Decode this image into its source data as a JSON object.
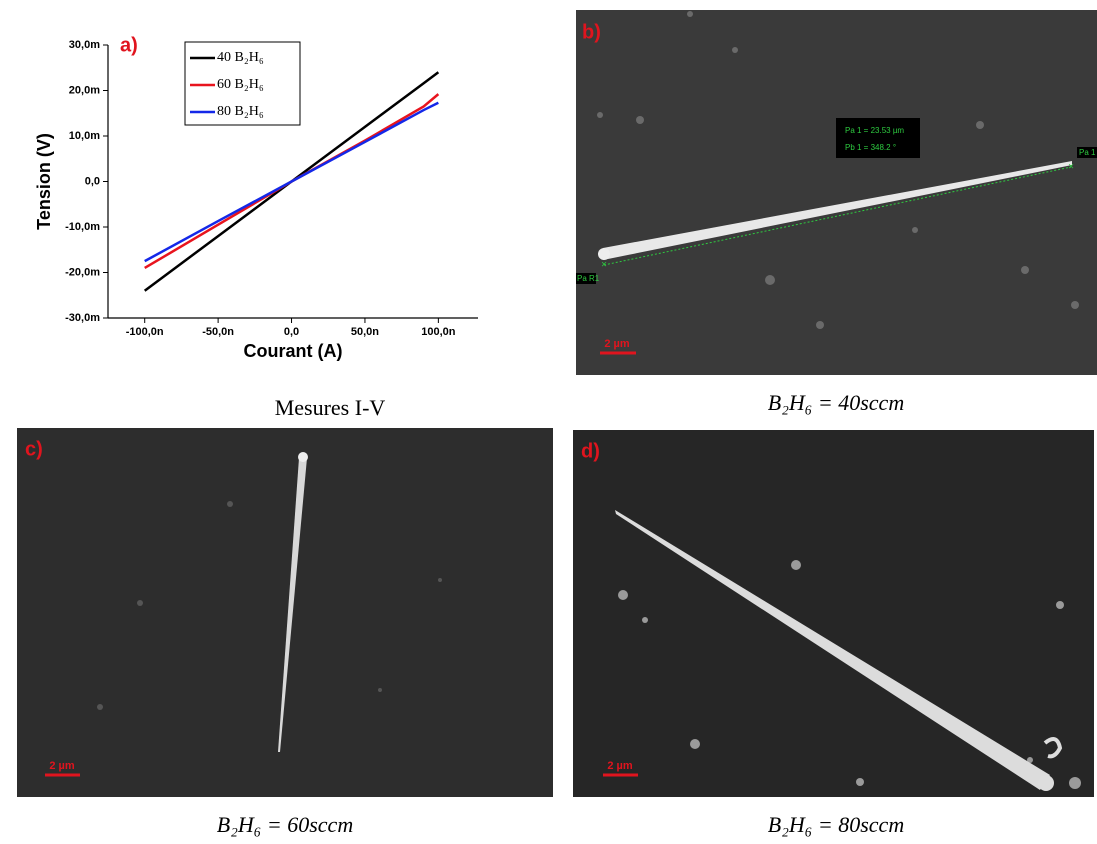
{
  "chart_data": {
    "type": "line",
    "x_label": "Courant (A)",
    "y_label": "Tension (V)",
    "x": [
      -1e-07,
      -5e-08,
      0,
      5e-08,
      9e-08,
      1e-07
    ],
    "series": [
      {
        "name": "40 B₂H₆",
        "color": "#000000",
        "values": [
          -0.024,
          -0.012,
          0,
          0.012,
          0.0216,
          0.024
        ]
      },
      {
        "name": "60 B₂H₆",
        "color": "#e8141e",
        "values": [
          -0.019,
          -0.0095,
          0,
          0.009,
          0.0165,
          0.0192
        ]
      },
      {
        "name": "80 B₂H₆",
        "color": "#1428e8",
        "values": [
          -0.0175,
          -0.0087,
          0,
          0.0087,
          0.0157,
          0.0173
        ]
      }
    ],
    "xlim": [
      -1.25e-07,
      1.27e-07
    ],
    "xticks": [
      {
        "value": -1e-07,
        "label": "-100,0n"
      },
      {
        "value": -5e-08,
        "label": "-50,0n"
      },
      {
        "value": 0,
        "label": "0,0"
      },
      {
        "value": 5e-08,
        "label": "50,0n"
      },
      {
        "value": 1e-07,
        "label": "100,0n"
      }
    ],
    "ylim": [
      -0.03,
      0.03
    ],
    "yticks": [
      {
        "value": -0.03,
        "label": "-30,0m"
      },
      {
        "value": -0.02,
        "label": "-20,0m"
      },
      {
        "value": -0.01,
        "label": "-10,0m"
      },
      {
        "value": 0,
        "label": "0,0"
      },
      {
        "value": 0.01,
        "label": "10,0m"
      },
      {
        "value": 0.02,
        "label": "20,0m"
      },
      {
        "value": 0.03,
        "label": "30,0m"
      }
    ],
    "legend": "upper left",
    "grid": false
  },
  "panels": [
    {
      "label": "a)",
      "caption": "Mesures I-V"
    },
    {
      "label": "b)",
      "caption": "B₂H₆ = 40sccm",
      "scale": "2 µm",
      "measurements": [
        "Pa 1 = 23.53 µm",
        "Pb 1 = 348.2 °"
      ],
      "markers": [
        "Pa 1",
        "Pa R1"
      ]
    },
    {
      "label": "c)",
      "caption": "B₂H₆ = 60sccm",
      "scale": "2 µm"
    },
    {
      "label": "d)",
      "caption": "B₂H₆ = 80sccm",
      "scale": "2 µm"
    }
  ]
}
